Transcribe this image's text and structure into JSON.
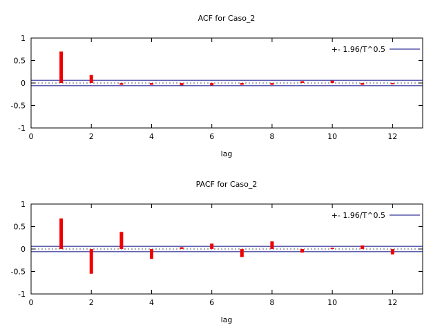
{
  "page": {
    "background": "#ffffff"
  },
  "chart_data": [
    {
      "type": "bar",
      "title": "ACF for Caso_2",
      "xlabel": "lag",
      "legend": "+- 1.96/T^0.5",
      "x": [
        1,
        2,
        3,
        4,
        5,
        6,
        7,
        8,
        9,
        10,
        11,
        12
      ],
      "values": [
        0.7,
        0.18,
        -0.04,
        -0.04,
        -0.05,
        -0.05,
        -0.04,
        -0.04,
        0.04,
        0.05,
        -0.04,
        -0.03
      ],
      "xlim": [
        0,
        13
      ],
      "ylim": [
        -1,
        1
      ],
      "xticks": [
        0,
        2,
        4,
        6,
        8,
        10,
        12
      ],
      "yticks": [
        -1,
        -0.5,
        0,
        0.5,
        1
      ],
      "confidence_band": 0.06,
      "bar_color": "#ee0000",
      "band_color": "#000080",
      "legend_position": "top-right",
      "grid": false
    },
    {
      "type": "bar",
      "title": "PACF for Caso_2",
      "xlabel": "lag",
      "legend": "+- 1.96/T^0.5",
      "x": [
        1,
        2,
        3,
        4,
        5,
        6,
        7,
        8,
        9,
        10,
        11,
        12
      ],
      "values": [
        0.68,
        -0.55,
        0.38,
        -0.22,
        0.04,
        0.12,
        -0.18,
        0.17,
        -0.08,
        0.03,
        0.08,
        -0.12
      ],
      "xlim": [
        0,
        13
      ],
      "ylim": [
        -1,
        1
      ],
      "xticks": [
        0,
        2,
        4,
        6,
        8,
        10,
        12
      ],
      "yticks": [
        -1,
        -0.5,
        0,
        0.5,
        1
      ],
      "confidence_band": 0.06,
      "bar_color": "#ee0000",
      "band_color": "#000080",
      "legend_position": "top-right",
      "grid": false
    }
  ]
}
